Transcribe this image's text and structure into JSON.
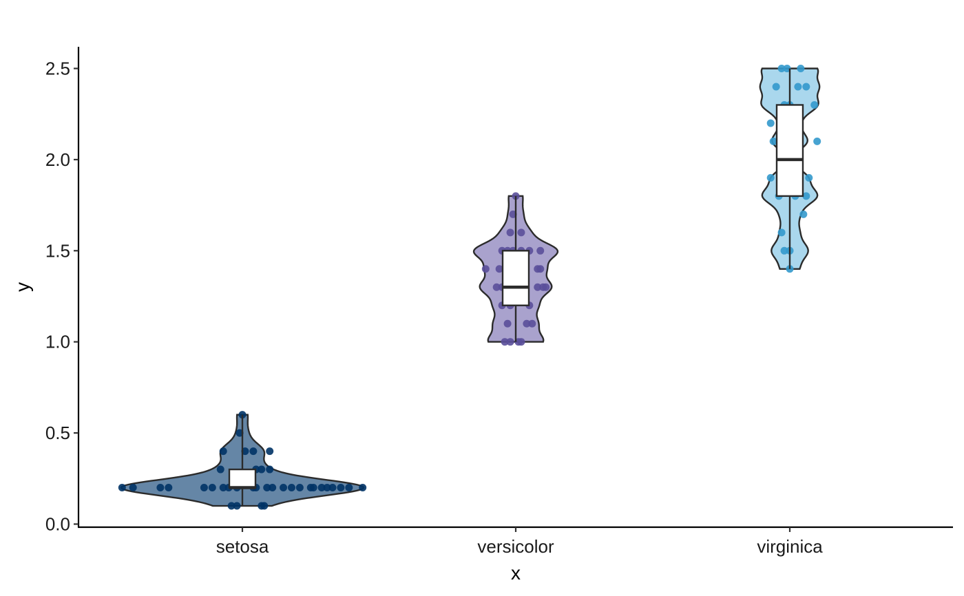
{
  "chart_data": {
    "type": "violin",
    "xlabel": "x",
    "ylabel": "y",
    "ylim": [
      -0.01,
      2.62
    ],
    "categories": [
      "setosa",
      "versicolor",
      "virginica"
    ],
    "y_ticks": [
      "0.0",
      "0.5",
      "1.0",
      "1.5",
      "2.0",
      "2.5"
    ],
    "grid": false,
    "legend": "none",
    "series": [
      {
        "category": "setosa",
        "color": "#4a7197",
        "point_color": "#003366",
        "box": {
          "min": 0.1,
          "q1": 0.2,
          "median": 0.2,
          "q3": 0.3,
          "max": 0.6
        },
        "points": [
          {
            "x": -0.44,
            "y": 0.2
          },
          {
            "x": -0.4,
            "y": 0.2
          },
          {
            "x": -0.3,
            "y": 0.2
          },
          {
            "x": -0.27,
            "y": 0.2
          },
          {
            "x": -0.14,
            "y": 0.2
          },
          {
            "x": -0.11,
            "y": 0.2
          },
          {
            "x": -0.07,
            "y": 0.2
          },
          {
            "x": -0.05,
            "y": 0.2
          },
          {
            "x": 0.04,
            "y": 0.2
          },
          {
            "x": 0.05,
            "y": 0.2
          },
          {
            "x": 0.11,
            "y": 0.2
          },
          {
            "x": 0.15,
            "y": 0.2
          },
          {
            "x": 0.18,
            "y": 0.2
          },
          {
            "x": 0.21,
            "y": 0.2
          },
          {
            "x": 0.25,
            "y": 0.2
          },
          {
            "x": 0.29,
            "y": 0.2
          },
          {
            "x": 0.31,
            "y": 0.2
          },
          {
            "x": 0.33,
            "y": 0.2
          },
          {
            "x": 0.36,
            "y": 0.2
          },
          {
            "x": 0.39,
            "y": 0.2
          },
          {
            "x": 0.44,
            "y": 0.2
          },
          {
            "x": -0.02,
            "y": 0.2
          },
          {
            "x": 0.09,
            "y": 0.2
          },
          {
            "x": 0.26,
            "y": 0.2
          },
          {
            "x": -0.08,
            "y": 0.3
          },
          {
            "x": 0.05,
            "y": 0.3
          },
          {
            "x": 0.07,
            "y": 0.3
          },
          {
            "x": 0.1,
            "y": 0.3
          },
          {
            "x": -0.04,
            "y": 0.1
          },
          {
            "x": -0.02,
            "y": 0.1
          },
          {
            "x": 0.07,
            "y": 0.1
          },
          {
            "x": 0.08,
            "y": 0.1
          },
          {
            "x": -0.07,
            "y": 0.4
          },
          {
            "x": 0.01,
            "y": 0.4
          },
          {
            "x": 0.04,
            "y": 0.4
          },
          {
            "x": 0.1,
            "y": 0.4
          },
          {
            "x": -0.01,
            "y": 0.5
          },
          {
            "x": 0.0,
            "y": 0.6
          }
        ]
      },
      {
        "category": "versicolor",
        "color": "#9a92c4",
        "point_color": "#5a4f9a",
        "box": {
          "min": 1.0,
          "q1": 1.2,
          "median": 1.3,
          "q3": 1.5,
          "max": 1.8
        },
        "points": [
          {
            "x": -0.04,
            "y": 1.0
          },
          {
            "x": -0.02,
            "y": 1.0
          },
          {
            "x": 0.01,
            "y": 1.0
          },
          {
            "x": 0.02,
            "y": 1.0
          },
          {
            "x": -0.03,
            "y": 1.1
          },
          {
            "x": 0.06,
            "y": 1.1
          },
          {
            "x": 0.04,
            "y": 1.1
          },
          {
            "x": -0.05,
            "y": 1.2
          },
          {
            "x": -0.02,
            "y": 1.2
          },
          {
            "x": 0.05,
            "y": 1.2
          },
          {
            "x": -0.07,
            "y": 1.3
          },
          {
            "x": -0.05,
            "y": 1.3
          },
          {
            "x": 0.08,
            "y": 1.3
          },
          {
            "x": 0.1,
            "y": 1.3
          },
          {
            "x": 0.11,
            "y": 1.3
          },
          {
            "x": -0.11,
            "y": 1.4
          },
          {
            "x": -0.06,
            "y": 1.4
          },
          {
            "x": 0.08,
            "y": 1.4
          },
          {
            "x": 0.09,
            "y": 1.4
          },
          {
            "x": -0.05,
            "y": 1.5
          },
          {
            "x": -0.03,
            "y": 1.5
          },
          {
            "x": -0.01,
            "y": 1.5
          },
          {
            "x": 0.02,
            "y": 1.5
          },
          {
            "x": 0.05,
            "y": 1.5
          },
          {
            "x": 0.09,
            "y": 1.5
          },
          {
            "x": -0.02,
            "y": 1.6
          },
          {
            "x": 0.02,
            "y": 1.6
          },
          {
            "x": -0.01,
            "y": 1.7
          },
          {
            "x": 0.0,
            "y": 1.8
          }
        ]
      },
      {
        "category": "virginica",
        "color": "#9bd0ea",
        "point_color": "#3399cc",
        "box": {
          "min": 1.4,
          "q1": 1.8,
          "median": 2.0,
          "q3": 2.3,
          "max": 2.5
        },
        "points": [
          {
            "x": 0.0,
            "y": 1.4
          },
          {
            "x": -0.02,
            "y": 1.5
          },
          {
            "x": 0.0,
            "y": 1.5
          },
          {
            "x": -0.03,
            "y": 1.6
          },
          {
            "x": 0.05,
            "y": 1.7
          },
          {
            "x": -0.04,
            "y": 1.8
          },
          {
            "x": 0.02,
            "y": 1.8
          },
          {
            "x": 0.06,
            "y": 1.8
          },
          {
            "x": -0.07,
            "y": 1.9
          },
          {
            "x": 0.07,
            "y": 1.9
          },
          {
            "x": -0.06,
            "y": 2.1
          },
          {
            "x": 0.1,
            "y": 2.1
          },
          {
            "x": -0.07,
            "y": 2.2
          },
          {
            "x": -0.02,
            "y": 2.3
          },
          {
            "x": 0.0,
            "y": 2.3
          },
          {
            "x": 0.09,
            "y": 2.3
          },
          {
            "x": -0.05,
            "y": 2.4
          },
          {
            "x": 0.03,
            "y": 2.4
          },
          {
            "x": 0.06,
            "y": 2.4
          },
          {
            "x": -0.03,
            "y": 2.5
          },
          {
            "x": -0.01,
            "y": 2.5
          },
          {
            "x": 0.04,
            "y": 2.5
          }
        ]
      }
    ]
  }
}
